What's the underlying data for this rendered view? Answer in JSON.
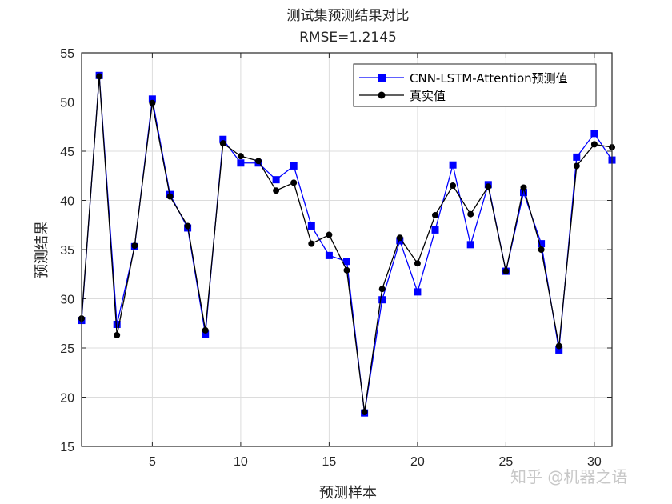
{
  "chart_data": {
    "type": "line",
    "title": "测试集预测结果对比",
    "subtitle": "RMSE=1.2145",
    "xlabel": "预测样本",
    "ylabel": "预测结果",
    "xlim": [
      1,
      31
    ],
    "ylim": [
      15,
      55
    ],
    "xticks": [
      5,
      10,
      15,
      20,
      25,
      30
    ],
    "yticks": [
      15,
      20,
      25,
      30,
      35,
      40,
      45,
      50,
      55
    ],
    "grid": true,
    "legend_position": "top-right",
    "x": [
      1,
      2,
      3,
      4,
      5,
      6,
      7,
      8,
      9,
      10,
      11,
      12,
      13,
      14,
      15,
      16,
      17,
      18,
      19,
      20,
      21,
      22,
      23,
      24,
      25,
      26,
      27,
      28,
      29,
      30,
      31
    ],
    "series": [
      {
        "name": "CNN-LSTM-Attention预测值",
        "color": "#0000ff",
        "marker": "square",
        "values": [
          27.8,
          52.7,
          27.4,
          35.3,
          50.3,
          40.6,
          37.2,
          26.4,
          46.2,
          43.8,
          43.8,
          42.1,
          43.5,
          37.4,
          34.4,
          33.8,
          18.4,
          29.9,
          35.9,
          30.7,
          37.0,
          43.6,
          35.5,
          41.6,
          32.8,
          40.8,
          35.6,
          24.8,
          44.4,
          46.8,
          44.1
        ]
      },
      {
        "name": "真实值",
        "color": "#000000",
        "marker": "circle",
        "values": [
          28.0,
          52.6,
          26.3,
          35.4,
          49.9,
          40.4,
          37.4,
          26.8,
          45.8,
          44.5,
          44.0,
          41.0,
          41.8,
          35.6,
          36.5,
          32.9,
          18.5,
          31.0,
          36.2,
          33.6,
          38.5,
          41.5,
          38.6,
          41.4,
          32.8,
          41.3,
          35.0,
          25.2,
          43.5,
          45.7,
          45.4
        ]
      }
    ]
  },
  "watermark": "知乎 @机器之语"
}
